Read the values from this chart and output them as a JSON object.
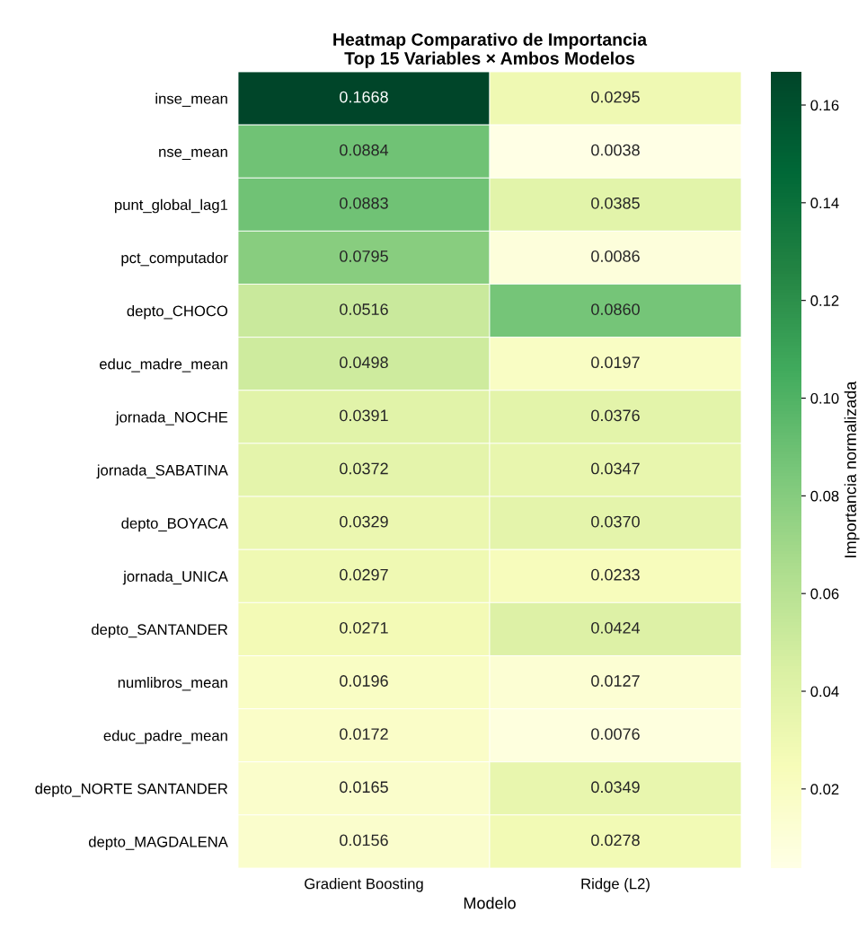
{
  "chart_data": {
    "type": "heatmap",
    "title": "Heatmap Comparativo de Importancia\nTop 15 Variables × Ambos Modelos",
    "xlabel": "Modelo",
    "clabel": "Importancia normalizada",
    "categories": [
      "Gradient Boosting",
      "Ridge (L2)"
    ],
    "y_categories": [
      "inse_mean",
      "nse_mean",
      "punt_global_lag1",
      "pct_computador",
      "depto_CHOCO",
      "educ_madre_mean",
      "jornada_NOCHE",
      "jornada_SABATINA",
      "depto_BOYACA",
      "jornada_UNICA",
      "depto_SANTANDER",
      "numlibros_mean",
      "educ_padre_mean",
      "depto_NORTE SANTANDER",
      "depto_MAGDALENA"
    ],
    "cells": [
      [
        0.1668,
        0.0295
      ],
      [
        0.0884,
        0.0038
      ],
      [
        0.0883,
        0.0385
      ],
      [
        0.0795,
        0.0086
      ],
      [
        0.0516,
        0.086
      ],
      [
        0.0498,
        0.0197
      ],
      [
        0.0391,
        0.0376
      ],
      [
        0.0372,
        0.0347
      ],
      [
        0.0329,
        0.037
      ],
      [
        0.0297,
        0.0233
      ],
      [
        0.0271,
        0.0424
      ],
      [
        0.0196,
        0.0127
      ],
      [
        0.0172,
        0.0076
      ],
      [
        0.0165,
        0.0349
      ],
      [
        0.0156,
        0.0278
      ]
    ],
    "cell_labels": [
      [
        "0.1668",
        "0.0295"
      ],
      [
        "0.0884",
        "0.0038"
      ],
      [
        "0.0883",
        "0.0385"
      ],
      [
        "0.0795",
        "0.0086"
      ],
      [
        "0.0516",
        "0.0860"
      ],
      [
        "0.0498",
        "0.0197"
      ],
      [
        "0.0391",
        "0.0376"
      ],
      [
        "0.0372",
        "0.0347"
      ],
      [
        "0.0329",
        "0.0370"
      ],
      [
        "0.0297",
        "0.0233"
      ],
      [
        "0.0271",
        "0.0424"
      ],
      [
        "0.0196",
        "0.0127"
      ],
      [
        "0.0172",
        "0.0076"
      ],
      [
        "0.0165",
        "0.0349"
      ],
      [
        "0.0156",
        "0.0278"
      ]
    ],
    "clim": [
      0.0038,
      0.1668
    ],
    "cticks": [
      0.02,
      0.04,
      0.06,
      0.08,
      {
        "value": 0.1,
        "label": "0.10"
      },
      0.12,
      0.14,
      0.16
    ]
  }
}
